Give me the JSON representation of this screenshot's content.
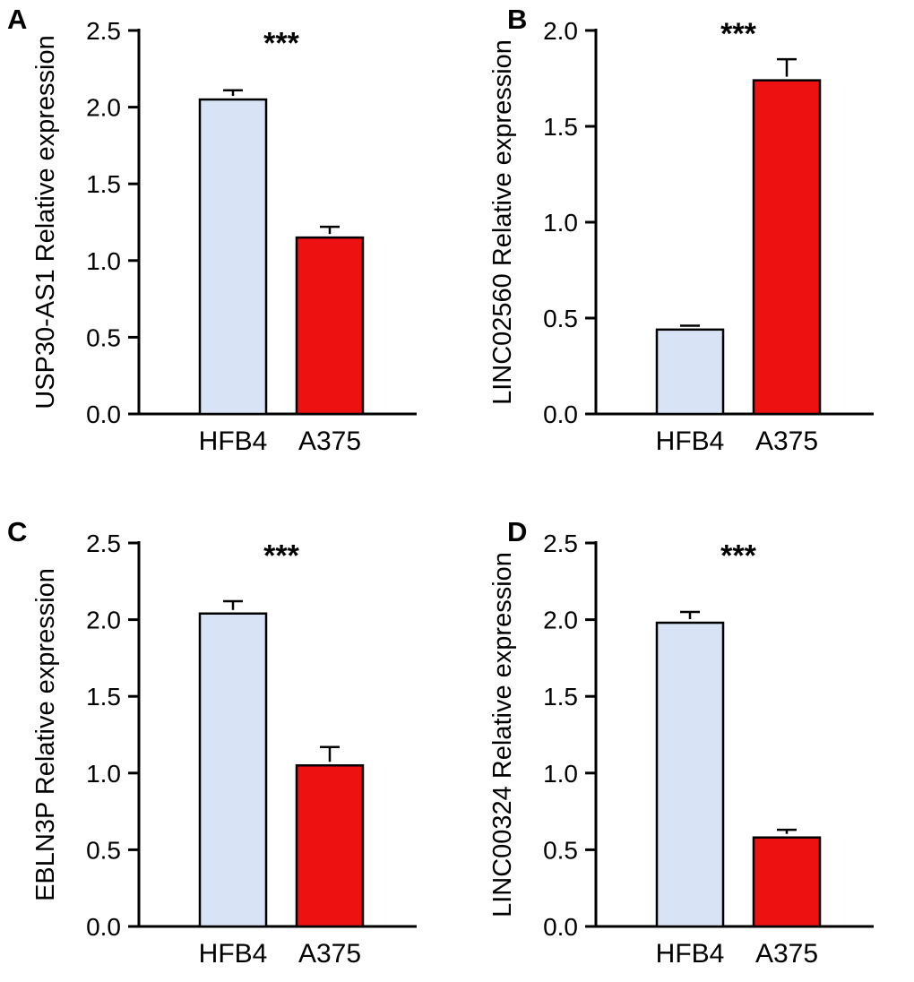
{
  "figure": {
    "background": "#ffffff",
    "axis_color": "#000000",
    "categories": [
      "HFB4",
      "A375"
    ],
    "bar_colors": [
      "#d8e4f6",
      "#ee1111"
    ],
    "significance_label": "***"
  },
  "chart_data": [
    {
      "type": "bar",
      "panel_label": "A",
      "title": "",
      "xlabel": "",
      "ylabel": "USP30-AS1 Relative expression",
      "categories": [
        "HFB4",
        "A375"
      ],
      "values": [
        2.05,
        1.15
      ],
      "errors": [
        0.06,
        0.07
      ],
      "ylim": [
        0,
        2.5
      ],
      "yticks": [
        "0.0",
        "0.5",
        "1.0",
        "1.5",
        "2.0",
        "2.5"
      ],
      "annotation": "***",
      "annotation_y": 2.35,
      "bar_colors": [
        "#d8e4f6",
        "#ee1111"
      ]
    },
    {
      "type": "bar",
      "panel_label": "B",
      "title": "",
      "xlabel": "",
      "ylabel": "LINC02560 Relative expression",
      "categories": [
        "HFB4",
        "A375"
      ],
      "values": [
        0.44,
        1.74
      ],
      "errors": [
        0.02,
        0.11
      ],
      "ylim": [
        0,
        2.0
      ],
      "yticks": [
        "0.0",
        "0.5",
        "1.0",
        "1.5",
        "2.0"
      ],
      "annotation": "***",
      "annotation_y": 1.93,
      "bar_colors": [
        "#d8e4f6",
        "#ee1111"
      ]
    },
    {
      "type": "bar",
      "panel_label": "C",
      "title": "",
      "xlabel": "",
      "ylabel": "EBLN3P Relative expression",
      "categories": [
        "HFB4",
        "A375"
      ],
      "values": [
        2.04,
        1.05
      ],
      "errors": [
        0.08,
        0.12
      ],
      "ylim": [
        0,
        2.5
      ],
      "yticks": [
        "0.0",
        "0.5",
        "1.0",
        "1.5",
        "2.0",
        "2.5"
      ],
      "annotation": "***",
      "annotation_y": 2.35,
      "bar_colors": [
        "#d8e4f6",
        "#ee1111"
      ]
    },
    {
      "type": "bar",
      "panel_label": "D",
      "title": "",
      "xlabel": "",
      "ylabel": "LINC00324 Relative expression",
      "categories": [
        "HFB4",
        "A375"
      ],
      "values": [
        1.98,
        0.58
      ],
      "errors": [
        0.07,
        0.05
      ],
      "ylim": [
        0,
        2.5
      ],
      "yticks": [
        "0.0",
        "0.5",
        "1.0",
        "1.5",
        "2.0",
        "2.5"
      ],
      "annotation": "***",
      "annotation_y": 2.35,
      "bar_colors": [
        "#d8e4f6",
        "#ee1111"
      ]
    }
  ]
}
